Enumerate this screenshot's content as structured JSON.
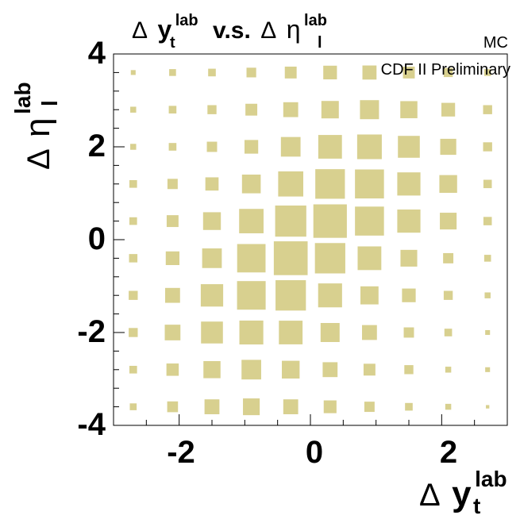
{
  "chart_data": {
    "type": "heatmap",
    "style": "box",
    "title": {
      "prefix": "Δ",
      "var1": "y",
      "var1_sub": "t",
      "var1_sup": "lab",
      "middle": "v.s.",
      "prefix2": "Δ",
      "var2": "η",
      "var2_sub": "l",
      "var2_sup": "lab"
    },
    "xlabel": {
      "prefix": "Δ",
      "var": "y",
      "sub": "t",
      "sup": "lab"
    },
    "ylabel": {
      "prefix": "Δ",
      "var": "η",
      "sub": "l",
      "sup": "lab"
    },
    "xlim": [
      -3,
      3
    ],
    "ylim": [
      -4,
      4
    ],
    "xticks": [
      -2,
      0,
      2
    ],
    "yticks": [
      -4,
      -2,
      0,
      2,
      4
    ],
    "x_tick_labels": [
      "-2",
      "0",
      "2"
    ],
    "y_tick_labels": [
      "-4",
      "-2",
      "0",
      "2",
      "4"
    ],
    "annotations": {
      "top_right": "MC",
      "inside": "CDF II Preliminary"
    },
    "box_color": "#d8d08f",
    "x_centers": [
      -2.7,
      -2.1,
      -1.5,
      -0.9,
      -0.3,
      0.3,
      0.9,
      1.5,
      2.1,
      2.7
    ],
    "y_centers": [
      3.6,
      2.8,
      2.0,
      1.2,
      0.4,
      -0.4,
      -1.2,
      -2.0,
      -2.8,
      -3.6
    ],
    "values": [
      [
        0.02,
        0.04,
        0.05,
        0.08,
        0.12,
        0.16,
        0.17,
        0.12,
        0.07,
        0.04
      ],
      [
        0.03,
        0.05,
        0.07,
        0.12,
        0.19,
        0.26,
        0.31,
        0.25,
        0.16,
        0.07
      ],
      [
        0.03,
        0.05,
        0.09,
        0.16,
        0.33,
        0.48,
        0.52,
        0.41,
        0.22,
        0.07
      ],
      [
        0.05,
        0.09,
        0.15,
        0.3,
        0.54,
        0.75,
        0.72,
        0.46,
        0.27,
        0.06
      ],
      [
        0.05,
        0.12,
        0.27,
        0.51,
        0.83,
        0.96,
        0.72,
        0.46,
        0.24,
        0.06
      ],
      [
        0.06,
        0.16,
        0.33,
        0.69,
        0.98,
        0.79,
        0.48,
        0.24,
        0.09,
        0.04
      ],
      [
        0.07,
        0.19,
        0.43,
        0.7,
        0.79,
        0.49,
        0.28,
        0.16,
        0.07,
        0.03
      ],
      [
        0.07,
        0.21,
        0.41,
        0.49,
        0.48,
        0.31,
        0.19,
        0.09,
        0.05,
        0.02
      ],
      [
        0.05,
        0.13,
        0.25,
        0.33,
        0.27,
        0.19,
        0.12,
        0.07,
        0.03,
        0.02
      ],
      [
        0.04,
        0.1,
        0.19,
        0.24,
        0.19,
        0.14,
        0.09,
        0.05,
        0.03,
        0.01
      ]
    ]
  }
}
